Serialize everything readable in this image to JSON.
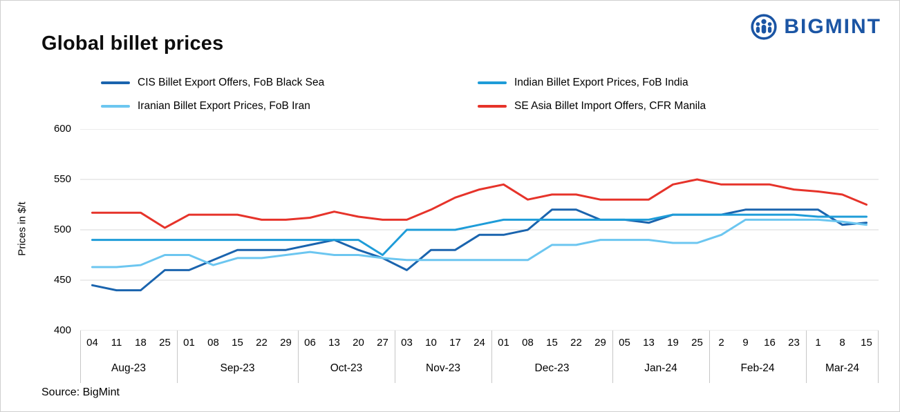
{
  "header": {
    "title": "Global billet prices",
    "brand": "BIGMINT"
  },
  "source": "Source: BigMint",
  "chart_data": {
    "type": "line",
    "title": "Global billet prices",
    "xlabel": "",
    "ylabel": "Prices in $/t",
    "ylim": [
      400,
      600
    ],
    "yticks": [
      400,
      450,
      500,
      550,
      600
    ],
    "grid": "horizontal",
    "legend_position": "top",
    "categories": [
      "04",
      "11",
      "18",
      "25",
      "01",
      "08",
      "15",
      "22",
      "29",
      "06",
      "13",
      "20",
      "27",
      "03",
      "10",
      "17",
      "24",
      "01",
      "08",
      "15",
      "22",
      "29",
      "05",
      "13",
      "19",
      "25",
      "2",
      "9",
      "16",
      "23",
      "1",
      "8",
      "15"
    ],
    "month_groups": [
      {
        "label": "Aug-23",
        "count": 4
      },
      {
        "label": "Sep-23",
        "count": 5
      },
      {
        "label": "Oct-23",
        "count": 4
      },
      {
        "label": "Nov-23",
        "count": 4
      },
      {
        "label": "Dec-23",
        "count": 5
      },
      {
        "label": "Jan-24",
        "count": 4
      },
      {
        "label": "Feb-24",
        "count": 4
      },
      {
        "label": "Mar-24",
        "count": 3
      }
    ],
    "series": [
      {
        "name": "CIS Billet Export Offers, FoB Black Sea",
        "color": "#1a64ae",
        "values": [
          445,
          440,
          440,
          460,
          460,
          470,
          480,
          480,
          480,
          485,
          490,
          480,
          472,
          460,
          480,
          480,
          495,
          495,
          500,
          520,
          520,
          510,
          510,
          507,
          515,
          515,
          515,
          520,
          520,
          520,
          520,
          505,
          507
        ]
      },
      {
        "name": "Indian Billet Export Prices, FoB India",
        "color": "#1e9cd8",
        "values": [
          490,
          490,
          490,
          490,
          490,
          490,
          490,
          490,
          490,
          490,
          490,
          490,
          475,
          500,
          500,
          500,
          505,
          510,
          510,
          510,
          510,
          510,
          510,
          510,
          515,
          515,
          515,
          515,
          515,
          515,
          513,
          513,
          513
        ]
      },
      {
        "name": "Iranian Billet Export Prices, FoB Iran",
        "color": "#6cc6f0",
        "values": [
          463,
          463,
          465,
          475,
          475,
          465,
          472,
          472,
          475,
          478,
          475,
          475,
          472,
          470,
          470,
          470,
          470,
          470,
          470,
          485,
          485,
          490,
          490,
          490,
          487,
          487,
          495,
          510,
          510,
          510,
          510,
          508,
          505
        ]
      },
      {
        "name": "SE Asia Billet Import Offers, CFR Manila",
        "color": "#e6332a",
        "values": [
          517,
          517,
          517,
          502,
          515,
          515,
          515,
          510,
          510,
          512,
          518,
          513,
          510,
          510,
          520,
          532,
          540,
          545,
          530,
          535,
          535,
          530,
          530,
          530,
          545,
          550,
          545,
          545,
          545,
          540,
          538,
          535,
          525
        ]
      }
    ]
  }
}
